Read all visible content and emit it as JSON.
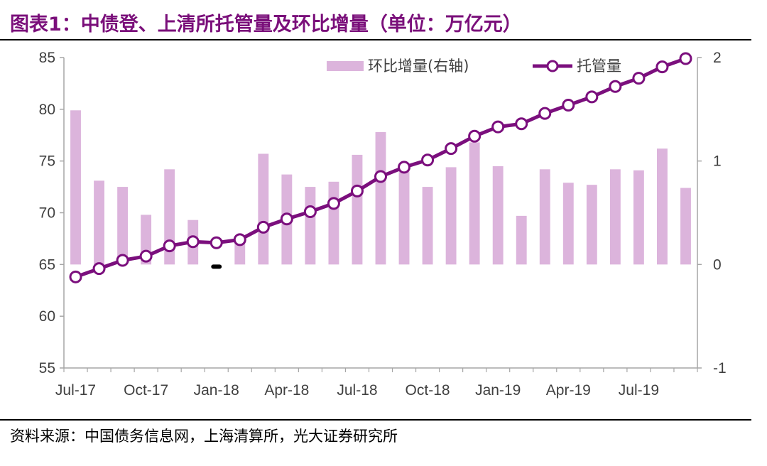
{
  "figure": {
    "title": "图表1：中债登、上清所托管量及环比增量（单位：万亿元）",
    "source": "资料来源：中国债务信息网，上海清算所，光大证券研究所"
  },
  "colors": {
    "title": "#7a0f7a",
    "line": "#7b0f7d",
    "bar": "#dcb4dc",
    "axis": "#a6a6a6",
    "marker_fill": "#ffffff"
  },
  "chart_data": {
    "type": "bar+line",
    "x_tick_labels": [
      "Jul-17",
      "Oct-17",
      "Jan-18",
      "Apr-18",
      "Jul-18",
      "Oct-18",
      "Jan-19",
      "Apr-19",
      "Jul-19"
    ],
    "categories": [
      "2017-07",
      "2017-08",
      "2017-09",
      "2017-10",
      "2017-11",
      "2017-12",
      "2018-01",
      "2018-02",
      "2018-03",
      "2018-04",
      "2018-05",
      "2018-06",
      "2018-07",
      "2018-08",
      "2018-09",
      "2018-10",
      "2018-11",
      "2018-12",
      "2019-01",
      "2019-02",
      "2019-03",
      "2019-04",
      "2019-05",
      "2019-06",
      "2019-07",
      "2019-08",
      "2019-09"
    ],
    "series": [
      {
        "name": "环比增量(右轴)",
        "type": "bar",
        "axis": "right",
        "values": [
          1.49,
          0.81,
          0.75,
          0.48,
          0.92,
          0.43,
          -0.03,
          0.26,
          1.07,
          0.87,
          0.75,
          0.8,
          1.06,
          1.28,
          0.9,
          0.75,
          0.94,
          1.18,
          0.95,
          0.47,
          0.92,
          0.79,
          0.77,
          0.92,
          0.91,
          1.12,
          0.74
        ]
      },
      {
        "name": "托管量",
        "type": "line",
        "axis": "left",
        "values": [
          63.8,
          64.6,
          65.4,
          65.8,
          66.8,
          67.2,
          67.1,
          67.4,
          68.6,
          69.4,
          70.1,
          70.9,
          72.1,
          73.5,
          74.4,
          75.1,
          76.2,
          77.4,
          78.3,
          78.6,
          79.6,
          80.4,
          81.2,
          82.2,
          83.0,
          84.1,
          84.9
        ]
      }
    ],
    "y_left": {
      "ticks": [
        55,
        60,
        65,
        70,
        75,
        80,
        85
      ],
      "range": [
        55,
        85
      ]
    },
    "y_right": {
      "ticks": [
        -1,
        0,
        1,
        2
      ],
      "range": [
        -1,
        2
      ]
    },
    "legend_position": "top-right",
    "grid": false
  }
}
